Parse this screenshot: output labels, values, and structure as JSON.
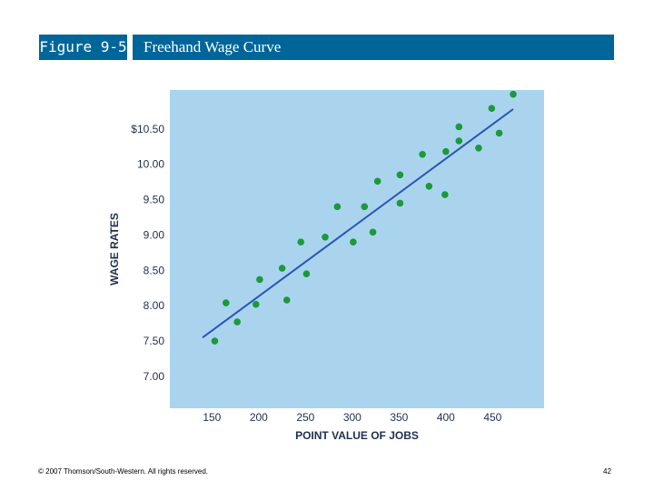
{
  "header": {
    "figure_label": "Figure 9-5",
    "title": "Freehand Wage Curve"
  },
  "footer": {
    "copyright": "© 2007 Thomson/South-Western. All rights reserved.",
    "page_number": "42"
  },
  "colors": {
    "header_bg": "#00669a",
    "plot_bg": "#aad4ee",
    "point": "#1a9a3a",
    "line": "#2a55b8"
  },
  "chart_data": {
    "type": "scatter",
    "title": "",
    "xlabel": "POINT VALUE OF JOBS",
    "ylabel": "WAGE RATES",
    "xlim": [
      105,
      505
    ],
    "ylim": [
      6.55,
      11.05
    ],
    "x_ticks": [
      150,
      200,
      250,
      300,
      350,
      400,
      450
    ],
    "x_tick_labels": [
      "150",
      "200",
      "250",
      "300",
      "350",
      "400",
      "450"
    ],
    "y_ticks": [
      7.0,
      7.5,
      8.0,
      8.5,
      9.0,
      9.5,
      10.0,
      10.5
    ],
    "y_tick_labels": [
      "7.00",
      "7.50",
      "8.00",
      "8.50",
      "9.00",
      "9.50",
      "10.00",
      "$10.50"
    ],
    "grid": false,
    "points": [
      {
        "x": 153,
        "y": 7.5
      },
      {
        "x": 165,
        "y": 8.04
      },
      {
        "x": 177,
        "y": 7.77
      },
      {
        "x": 197,
        "y": 8.02
      },
      {
        "x": 201,
        "y": 8.37
      },
      {
        "x": 225,
        "y": 8.53
      },
      {
        "x": 230,
        "y": 8.08
      },
      {
        "x": 245,
        "y": 8.9
      },
      {
        "x": 251,
        "y": 8.45
      },
      {
        "x": 271,
        "y": 8.97
      },
      {
        "x": 284,
        "y": 9.4
      },
      {
        "x": 301,
        "y": 8.9
      },
      {
        "x": 313,
        "y": 9.4
      },
      {
        "x": 322,
        "y": 9.04
      },
      {
        "x": 327,
        "y": 9.76
      },
      {
        "x": 351,
        "y": 9.85
      },
      {
        "x": 351,
        "y": 9.45
      },
      {
        "x": 375,
        "y": 10.14
      },
      {
        "x": 382,
        "y": 9.69
      },
      {
        "x": 399,
        "y": 9.57
      },
      {
        "x": 400,
        "y": 10.18
      },
      {
        "x": 414,
        "y": 10.53
      },
      {
        "x": 414,
        "y": 10.33
      },
      {
        "x": 435,
        "y": 10.23
      },
      {
        "x": 449,
        "y": 10.79
      },
      {
        "x": 457,
        "y": 10.44
      },
      {
        "x": 472,
        "y": 10.99
      }
    ],
    "trend_line": {
      "x": [
        140,
        472
      ],
      "y": [
        7.55,
        10.78
      ]
    }
  }
}
